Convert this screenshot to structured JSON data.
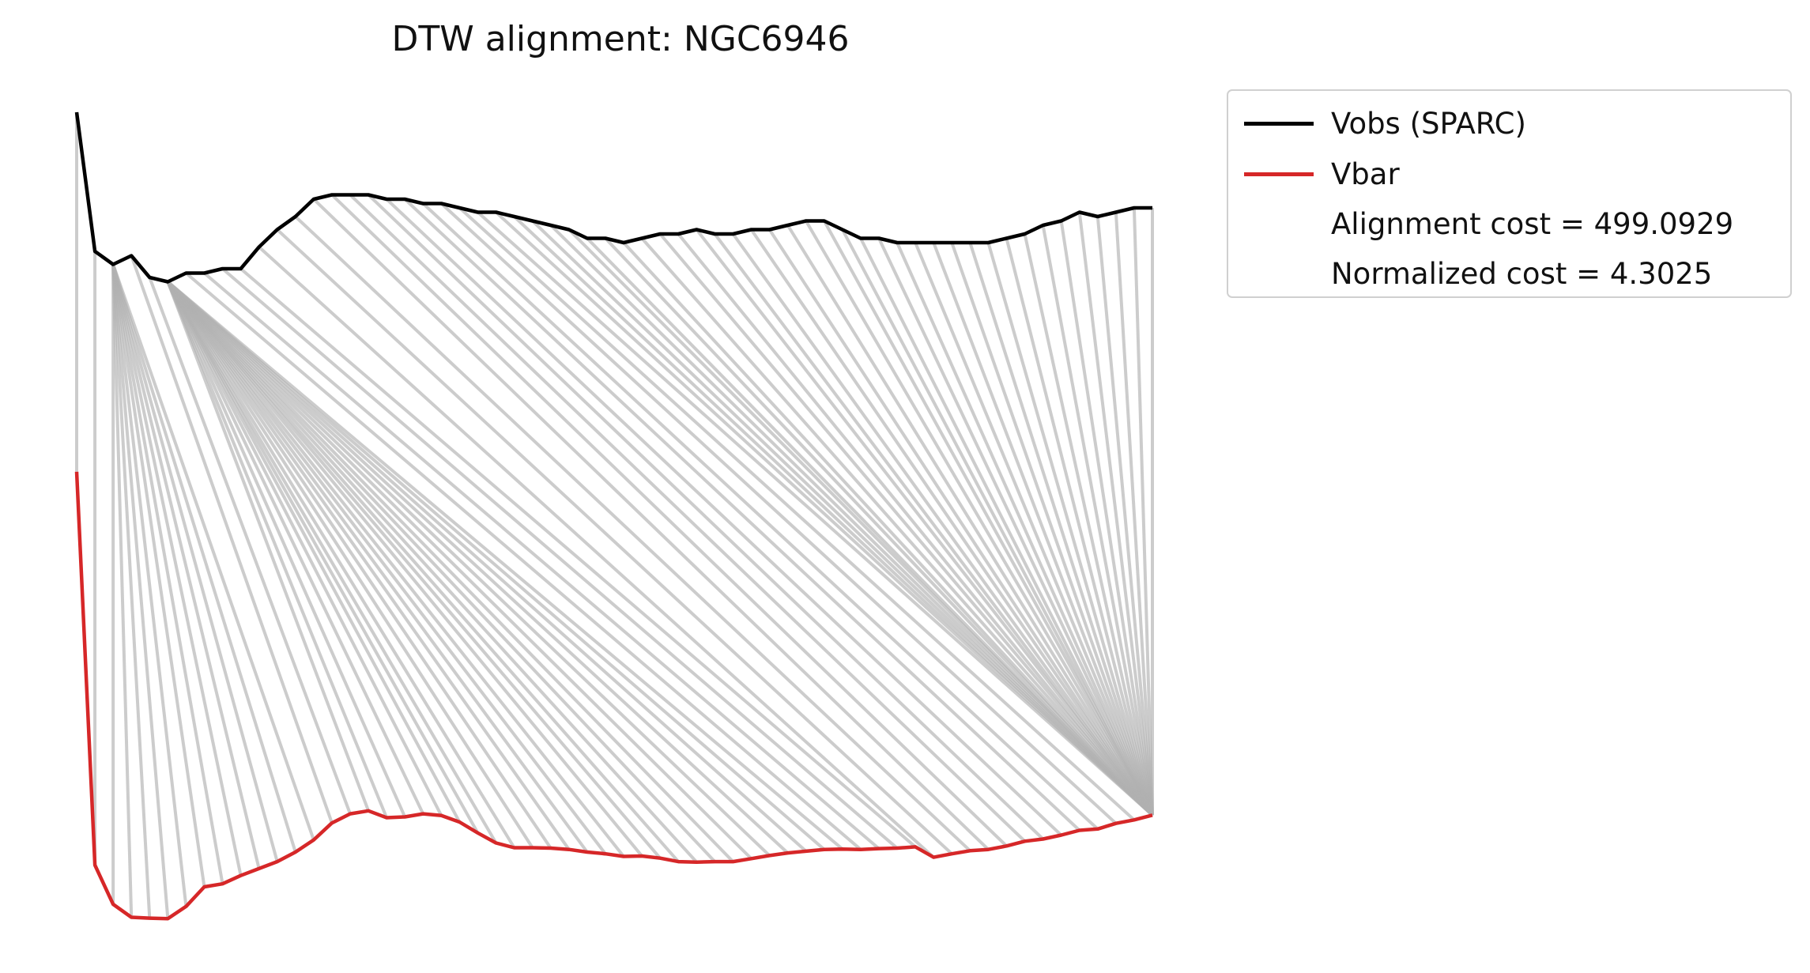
{
  "chart_data": {
    "type": "line",
    "title": "DTW alignment: NGC6946",
    "xlabel": "",
    "ylabel": "",
    "grid": false,
    "axes_visible": false,
    "legend_position": "outside-top-right",
    "series": [
      {
        "name": "Vobs (SPARC)",
        "color": "#000000",
        "values": [
          110,
          78,
          75,
          77,
          72,
          71,
          73,
          73,
          74,
          74,
          79,
          83,
          86,
          90,
          91,
          91,
          91,
          90,
          90,
          89,
          89,
          88,
          87,
          87,
          86,
          85,
          84,
          83,
          81,
          81,
          80,
          81,
          82,
          82,
          83,
          82,
          82,
          83,
          83,
          84,
          85,
          85,
          83,
          81,
          81,
          80,
          80,
          80,
          80,
          80,
          80,
          81,
          82,
          84,
          85,
          87,
          86,
          87,
          88,
          88
        ]
      },
      {
        "name": "Vbar",
        "color": "#d62728",
        "values": [
          107.5,
          17,
          8,
          5,
          4.8,
          4.7,
          7.5,
          12,
          12.7,
          14.6,
          16.2,
          17.8,
          20.0,
          22.8,
          26.7,
          28.8,
          29.5,
          27.9,
          28.1,
          28.8,
          28.4,
          26.9,
          24.4,
          22.1,
          21.0,
          21.0,
          20.9,
          20.6,
          20.0,
          19.6,
          19.0,
          19.1,
          18.6,
          17.8,
          17.7,
          17.8,
          17.8,
          18.5,
          19.2,
          19.8,
          20.2,
          20.6,
          20.7,
          20.6,
          20.8,
          20.9,
          21.2,
          18.8,
          19.6,
          20.3,
          20.6,
          21.4,
          22.5,
          23.0,
          23.9,
          25.0,
          25.3,
          26.6,
          27.4,
          28.5
        ]
      }
    ],
    "alignment_path": [
      [
        0,
        0
      ],
      [
        1,
        1
      ],
      [
        2,
        2
      ],
      [
        2,
        3
      ],
      [
        2,
        4
      ],
      [
        2,
        5
      ],
      [
        2,
        6
      ],
      [
        2,
        7
      ],
      [
        2,
        8
      ],
      [
        2,
        9
      ],
      [
        2,
        10
      ],
      [
        2,
        11
      ],
      [
        2,
        12
      ],
      [
        2,
        13
      ],
      [
        3,
        14
      ],
      [
        4,
        15
      ],
      [
        5,
        16
      ],
      [
        5,
        17
      ],
      [
        5,
        18
      ],
      [
        5,
        19
      ],
      [
        5,
        20
      ],
      [
        5,
        21
      ],
      [
        5,
        22
      ],
      [
        5,
        23
      ],
      [
        5,
        24
      ],
      [
        5,
        25
      ],
      [
        5,
        26
      ],
      [
        5,
        27
      ],
      [
        5,
        28
      ],
      [
        5,
        29
      ],
      [
        5,
        30
      ],
      [
        5,
        31
      ],
      [
        5,
        32
      ],
      [
        5,
        33
      ],
      [
        5,
        34
      ],
      [
        5,
        35
      ],
      [
        5,
        36
      ],
      [
        5,
        37
      ],
      [
        5,
        38
      ],
      [
        5,
        39
      ],
      [
        5,
        40
      ],
      [
        5,
        41
      ],
      [
        5,
        42
      ],
      [
        6,
        43
      ],
      [
        7,
        44
      ],
      [
        8,
        45
      ],
      [
        9,
        46
      ],
      [
        10,
        47
      ],
      [
        11,
        48
      ],
      [
        12,
        49
      ],
      [
        13,
        50
      ],
      [
        14,
        51
      ],
      [
        15,
        52
      ],
      [
        16,
        53
      ],
      [
        17,
        54
      ],
      [
        18,
        55
      ],
      [
        19,
        56
      ],
      [
        20,
        57
      ],
      [
        21,
        58
      ],
      [
        22,
        59
      ],
      [
        23,
        59
      ],
      [
        24,
        59
      ],
      [
        25,
        59
      ],
      [
        26,
        59
      ],
      [
        27,
        59
      ],
      [
        28,
        59
      ],
      [
        29,
        59
      ],
      [
        30,
        59
      ],
      [
        31,
        59
      ],
      [
        32,
        59
      ],
      [
        33,
        59
      ],
      [
        34,
        59
      ],
      [
        35,
        59
      ],
      [
        36,
        59
      ],
      [
        37,
        59
      ],
      [
        38,
        59
      ],
      [
        39,
        59
      ],
      [
        40,
        59
      ],
      [
        41,
        59
      ],
      [
        42,
        59
      ],
      [
        43,
        59
      ],
      [
        44,
        59
      ],
      [
        45,
        59
      ],
      [
        46,
        59
      ],
      [
        47,
        59
      ],
      [
        48,
        59
      ],
      [
        49,
        59
      ],
      [
        50,
        59
      ],
      [
        51,
        59
      ],
      [
        52,
        59
      ],
      [
        53,
        59
      ],
      [
        54,
        59
      ],
      [
        55,
        59
      ],
      [
        56,
        59
      ],
      [
        57,
        59
      ],
      [
        58,
        59
      ],
      [
        59,
        59
      ]
    ],
    "connector_color": "#b0b0b0",
    "legend_extra": [
      "Alignment cost = 499.0929",
      "Normalized cost = 4.3025"
    ]
  }
}
